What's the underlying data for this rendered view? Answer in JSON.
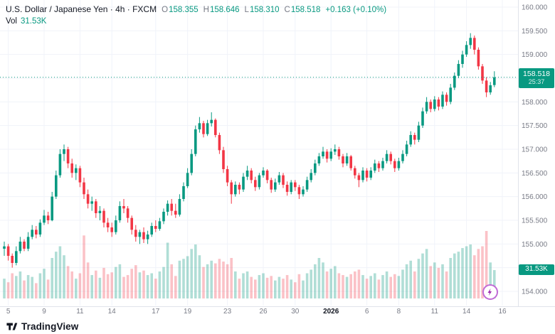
{
  "header": {
    "symbol_line": "U.S. Dollar / Japanese Yen · 4h · FXCM",
    "ohlc": {
      "o_label": "O",
      "o_value": "158.355",
      "h_label": "H",
      "h_value": "158.646",
      "l_label": "L",
      "l_value": "158.310",
      "c_label": "C",
      "c_value": "158.518",
      "change": "+0.163 (+0.10%)"
    },
    "volume_label": "Vol",
    "volume_value": "31.53K"
  },
  "badges": {
    "price_value": "158.518",
    "price_countdown": "25:37",
    "volume_value": "31.53K"
  },
  "footer": {
    "brand": "TradingView"
  },
  "icons": {
    "flash": "lightning-bolt"
  },
  "colors": {
    "up": "#089981",
    "down": "#f23645",
    "vol_up": "rgba(8,153,129,0.32)",
    "vol_down": "rgba(242,54,69,0.30)",
    "grid": "#f0f3fa",
    "axis_border": "#e0e3eb",
    "axis_text": "#787b86",
    "text": "#131722",
    "badge_bg": "#089981",
    "flash_purple": "#9c27b0"
  },
  "chart_data": {
    "type": "candlestick",
    "title": "U.S. Dollar / Japanese Yen · 4h · FXCM",
    "last_price": 158.518,
    "price_ticks": [
      160.0,
      159.5,
      159.0,
      158.5,
      158.0,
      157.5,
      157.0,
      156.5,
      156.0,
      155.5,
      155.0,
      154.5,
      154.0
    ],
    "price_plot_top": 160.15,
    "price_plot_bottom": 153.85,
    "volume_axis_max_k": 75,
    "grid": true,
    "time_ticks": [
      {
        "label": "5",
        "index": 1
      },
      {
        "label": "9",
        "index": 10
      },
      {
        "label": "11",
        "index": 19
      },
      {
        "label": "14",
        "index": 27
      },
      {
        "label": "17",
        "index": 38
      },
      {
        "label": "19",
        "index": 46
      },
      {
        "label": "23",
        "index": 56
      },
      {
        "label": "26",
        "index": 65
      },
      {
        "label": "30",
        "index": 73
      },
      {
        "label": "2026",
        "index": 82,
        "bold": true
      },
      {
        "label": "6",
        "index": 91
      },
      {
        "label": "8",
        "index": 99
      },
      {
        "label": "11",
        "index": 108
      },
      {
        "label": "14",
        "index": 116
      },
      {
        "label": "16",
        "index": 125
      }
    ],
    "candles_format": "[open, high, low, close, volume_k]",
    "candles": [
      [
        154.9,
        155.05,
        154.75,
        154.95,
        22
      ],
      [
        154.95,
        155.0,
        154.65,
        154.75,
        18
      ],
      [
        154.75,
        154.8,
        154.5,
        154.6,
        28
      ],
      [
        154.6,
        154.95,
        154.55,
        154.85,
        25
      ],
      [
        154.85,
        155.15,
        154.8,
        155.05,
        30
      ],
      [
        155.05,
        155.1,
        154.85,
        154.9,
        20
      ],
      [
        154.9,
        155.25,
        154.85,
        155.15,
        26
      ],
      [
        155.15,
        155.4,
        155.1,
        155.3,
        24
      ],
      [
        155.3,
        155.38,
        155.12,
        155.2,
        17
      ],
      [
        155.2,
        155.52,
        155.15,
        155.45,
        28
      ],
      [
        155.45,
        155.72,
        155.4,
        155.6,
        33
      ],
      [
        155.6,
        155.68,
        155.42,
        155.5,
        21
      ],
      [
        155.5,
        156.1,
        155.48,
        156.0,
        45
      ],
      [
        156.0,
        156.55,
        155.95,
        156.45,
        52
      ],
      [
        156.45,
        157.0,
        156.4,
        156.9,
        58
      ],
      [
        156.9,
        157.1,
        156.75,
        157.0,
        48
      ],
      [
        157.0,
        157.05,
        156.6,
        156.7,
        36
      ],
      [
        156.7,
        156.8,
        156.4,
        156.5,
        30
      ],
      [
        156.5,
        156.68,
        156.35,
        156.6,
        22
      ],
      [
        156.6,
        156.65,
        156.2,
        156.3,
        28
      ],
      [
        156.3,
        156.4,
        155.95,
        156.05,
        70
      ],
      [
        156.05,
        156.15,
        155.75,
        155.85,
        40
      ],
      [
        155.85,
        156.0,
        155.7,
        155.9,
        26
      ],
      [
        155.9,
        155.95,
        155.55,
        155.65,
        31
      ],
      [
        155.65,
        155.8,
        155.5,
        155.7,
        23
      ],
      [
        155.7,
        155.75,
        155.35,
        155.45,
        34
      ],
      [
        155.45,
        155.55,
        155.25,
        155.35,
        27
      ],
      [
        155.35,
        155.45,
        155.15,
        155.25,
        29
      ],
      [
        155.25,
        155.6,
        155.2,
        155.5,
        35
      ],
      [
        155.5,
        155.9,
        155.45,
        155.8,
        38
      ],
      [
        155.8,
        155.95,
        155.65,
        155.75,
        24
      ],
      [
        155.75,
        155.8,
        155.45,
        155.55,
        26
      ],
      [
        155.55,
        155.6,
        155.2,
        155.3,
        33
      ],
      [
        155.3,
        155.4,
        155.05,
        155.15,
        37
      ],
      [
        155.15,
        155.3,
        155.0,
        155.25,
        29
      ],
      [
        155.25,
        155.35,
        155.02,
        155.1,
        31
      ],
      [
        155.1,
        155.28,
        155.0,
        155.2,
        26
      ],
      [
        155.2,
        155.45,
        155.15,
        155.38,
        28
      ],
      [
        155.38,
        155.5,
        155.25,
        155.32,
        22
      ],
      [
        155.32,
        155.55,
        155.28,
        155.48,
        30
      ],
      [
        155.48,
        155.75,
        155.42,
        155.68,
        35
      ],
      [
        155.68,
        155.92,
        155.6,
        155.85,
        62
      ],
      [
        155.85,
        155.95,
        155.6,
        155.7,
        38
      ],
      [
        155.7,
        155.85,
        155.55,
        155.62,
        25
      ],
      [
        155.62,
        156.05,
        155.58,
        155.95,
        42
      ],
      [
        155.95,
        156.3,
        155.9,
        156.22,
        44
      ],
      [
        156.22,
        156.6,
        156.18,
        156.5,
        47
      ],
      [
        156.5,
        157.0,
        156.45,
        156.9,
        55
      ],
      [
        156.9,
        157.5,
        156.85,
        157.42,
        60
      ],
      [
        157.42,
        157.68,
        157.35,
        157.55,
        48
      ],
      [
        157.55,
        157.6,
        157.25,
        157.32,
        35
      ],
      [
        157.32,
        157.62,
        157.28,
        157.55,
        38
      ],
      [
        157.55,
        157.78,
        157.48,
        157.62,
        42
      ],
      [
        157.62,
        157.65,
        157.25,
        157.3,
        39
      ],
      [
        157.3,
        157.35,
        156.9,
        156.98,
        44
      ],
      [
        156.98,
        157.05,
        156.5,
        156.58,
        41
      ],
      [
        156.58,
        156.65,
        156.22,
        156.3,
        38
      ],
      [
        156.3,
        156.35,
        155.85,
        156.05,
        45
      ],
      [
        156.05,
        156.32,
        156.0,
        156.25,
        30
      ],
      [
        156.25,
        156.3,
        156.05,
        156.15,
        22
      ],
      [
        156.15,
        156.5,
        156.1,
        156.42,
        28
      ],
      [
        156.42,
        156.65,
        156.35,
        156.55,
        30
      ],
      [
        156.55,
        156.6,
        156.28,
        156.35,
        24
      ],
      [
        156.35,
        156.42,
        156.12,
        156.2,
        21
      ],
      [
        156.2,
        156.5,
        156.15,
        156.45,
        26
      ],
      [
        156.45,
        156.62,
        156.4,
        156.55,
        28
      ],
      [
        156.55,
        156.58,
        156.28,
        156.35,
        23
      ],
      [
        156.35,
        156.4,
        156.08,
        156.15,
        25
      ],
      [
        156.15,
        156.38,
        156.1,
        156.3,
        20
      ],
      [
        156.3,
        156.52,
        156.25,
        156.45,
        24
      ],
      [
        156.45,
        156.5,
        156.18,
        156.25,
        22
      ],
      [
        156.25,
        156.32,
        156.02,
        156.1,
        26
      ],
      [
        156.1,
        156.35,
        156.05,
        156.3,
        21
      ],
      [
        156.3,
        156.35,
        156.12,
        156.2,
        18
      ],
      [
        156.2,
        156.25,
        155.95,
        156.05,
        27
      ],
      [
        156.05,
        156.22,
        156.0,
        156.15,
        20
      ],
      [
        156.15,
        156.42,
        156.1,
        156.35,
        28
      ],
      [
        156.35,
        156.58,
        156.3,
        156.5,
        32
      ],
      [
        156.5,
        156.78,
        156.45,
        156.7,
        38
      ],
      [
        156.7,
        156.92,
        156.65,
        156.85,
        45
      ],
      [
        156.85,
        157.05,
        156.8,
        156.95,
        40
      ],
      [
        156.95,
        157.0,
        156.72,
        156.8,
        30
      ],
      [
        156.8,
        157.02,
        156.75,
        156.95,
        33
      ],
      [
        156.95,
        157.1,
        156.88,
        157.0,
        36
      ],
      [
        157.0,
        157.05,
        156.78,
        156.85,
        28
      ],
      [
        156.85,
        156.9,
        156.62,
        156.7,
        26
      ],
      [
        156.7,
        156.92,
        156.65,
        156.85,
        24
      ],
      [
        156.85,
        156.88,
        156.55,
        156.6,
        27
      ],
      [
        156.6,
        156.65,
        156.38,
        156.45,
        30
      ],
      [
        156.45,
        156.5,
        156.2,
        156.35,
        32
      ],
      [
        156.35,
        156.62,
        156.3,
        156.55,
        26
      ],
      [
        156.55,
        156.6,
        156.32,
        156.4,
        22
      ],
      [
        156.4,
        156.62,
        156.35,
        156.55,
        25
      ],
      [
        156.55,
        156.78,
        156.5,
        156.7,
        28
      ],
      [
        156.7,
        156.75,
        156.52,
        156.6,
        21
      ],
      [
        156.6,
        156.82,
        156.55,
        156.75,
        26
      ],
      [
        156.75,
        156.98,
        156.7,
        156.9,
        30
      ],
      [
        156.9,
        156.95,
        156.68,
        156.75,
        24
      ],
      [
        156.75,
        156.8,
        156.52,
        156.6,
        27
      ],
      [
        156.6,
        156.82,
        156.55,
        156.75,
        25
      ],
      [
        156.75,
        156.98,
        156.7,
        156.9,
        32
      ],
      [
        156.9,
        157.18,
        156.85,
        157.1,
        38
      ],
      [
        157.1,
        157.38,
        157.05,
        157.3,
        42
      ],
      [
        157.3,
        157.35,
        157.1,
        157.2,
        30
      ],
      [
        157.2,
        157.58,
        157.15,
        157.5,
        44
      ],
      [
        157.5,
        157.88,
        157.45,
        157.8,
        50
      ],
      [
        157.8,
        158.1,
        157.75,
        158.0,
        55
      ],
      [
        158.0,
        158.05,
        157.78,
        157.85,
        36
      ],
      [
        157.85,
        158.12,
        157.8,
        158.05,
        40
      ],
      [
        158.05,
        158.1,
        157.82,
        157.9,
        34
      ],
      [
        157.9,
        158.22,
        157.85,
        158.15,
        38
      ],
      [
        158.15,
        158.2,
        157.92,
        158.0,
        30
      ],
      [
        158.0,
        158.38,
        157.95,
        158.3,
        45
      ],
      [
        158.3,
        158.62,
        158.25,
        158.55,
        50
      ],
      [
        158.55,
        158.88,
        158.5,
        158.8,
        52
      ],
      [
        158.8,
        159.08,
        158.72,
        159.0,
        56
      ],
      [
        159.0,
        159.28,
        158.95,
        159.2,
        58
      ],
      [
        159.2,
        159.45,
        159.12,
        159.35,
        60
      ],
      [
        159.35,
        159.4,
        159.0,
        159.1,
        48
      ],
      [
        159.1,
        159.15,
        158.68,
        158.75,
        55
      ],
      [
        158.75,
        158.8,
        158.38,
        158.45,
        58
      ],
      [
        158.45,
        158.52,
        158.1,
        158.2,
        75
      ],
      [
        158.2,
        158.42,
        158.15,
        158.35,
        40
      ],
      [
        158.355,
        158.646,
        158.31,
        158.518,
        31.53
      ]
    ]
  }
}
